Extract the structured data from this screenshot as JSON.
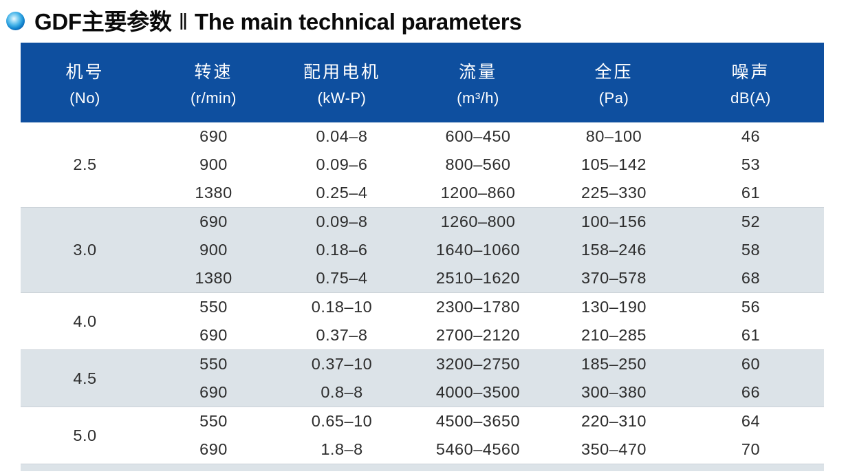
{
  "page": {
    "title_zh": "GDF主要参数",
    "title_sep": "‖",
    "title_en": "The main technical parameters",
    "bullet_icon": "blue-orb-icon"
  },
  "table": {
    "colors": {
      "header_bg": "#0e4f9f",
      "band_gray": "#dce3e8",
      "header_text": "#ffffff",
      "body_text": "#2d2d2d"
    },
    "columns": [
      {
        "id": "no",
        "zh": "机号",
        "unit": "(No)"
      },
      {
        "id": "speed",
        "zh": "转速",
        "unit": "(r/min)"
      },
      {
        "id": "motor",
        "zh": "配用电机",
        "unit": "(kW-P)"
      },
      {
        "id": "flow",
        "zh": "流量",
        "unit": "(m³/h)"
      },
      {
        "id": "pressure",
        "zh": "全压",
        "unit": "(Pa)"
      },
      {
        "id": "noise",
        "zh": "噪声",
        "unit": "dB(A)"
      }
    ],
    "groups": [
      {
        "no": "2.5",
        "shade": "white",
        "rows": [
          {
            "speed": "690",
            "motor": "0.04–8",
            "flow": "600–450",
            "pressure": "80–100",
            "noise": "46"
          },
          {
            "speed": "900",
            "motor": "0.09–6",
            "flow": "800–560",
            "pressure": "105–142",
            "noise": "53"
          },
          {
            "speed": "1380",
            "motor": "0.25–4",
            "flow": "1200–860",
            "pressure": "225–330",
            "noise": "61"
          }
        ]
      },
      {
        "no": "3.0",
        "shade": "gray",
        "rows": [
          {
            "speed": "690",
            "motor": "0.09–8",
            "flow": "1260–800",
            "pressure": "100–156",
            "noise": "52"
          },
          {
            "speed": "900",
            "motor": "0.18–6",
            "flow": "1640–1060",
            "pressure": "158–246",
            "noise": "58"
          },
          {
            "speed": "1380",
            "motor": "0.75–4",
            "flow": "2510–1620",
            "pressure": "370–578",
            "noise": "68"
          }
        ]
      },
      {
        "no": "4.0",
        "shade": "white",
        "rows": [
          {
            "speed": "550",
            "motor": "0.18–10",
            "flow": "2300–1780",
            "pressure": "130–190",
            "noise": "56"
          },
          {
            "speed": "690",
            "motor": "0.37–8",
            "flow": "2700–2120",
            "pressure": "210–285",
            "noise": "61"
          }
        ]
      },
      {
        "no": "4.5",
        "shade": "gray",
        "rows": [
          {
            "speed": "550",
            "motor": "0.37–10",
            "flow": "3200–2750",
            "pressure": "185–250",
            "noise": "60"
          },
          {
            "speed": "690",
            "motor": "0.8–8",
            "flow": "4000–3500",
            "pressure": "300–380",
            "noise": "66"
          }
        ]
      },
      {
        "no": "5.0",
        "shade": "white",
        "rows": [
          {
            "speed": "550",
            "motor": "0.65–10",
            "flow": "4500–3650",
            "pressure": "220–310",
            "noise": "64"
          },
          {
            "speed": "690",
            "motor": "1.8–8",
            "flow": "5460–4560",
            "pressure": "350–470",
            "noise": "70"
          }
        ]
      }
    ],
    "next_band_partial": true
  }
}
